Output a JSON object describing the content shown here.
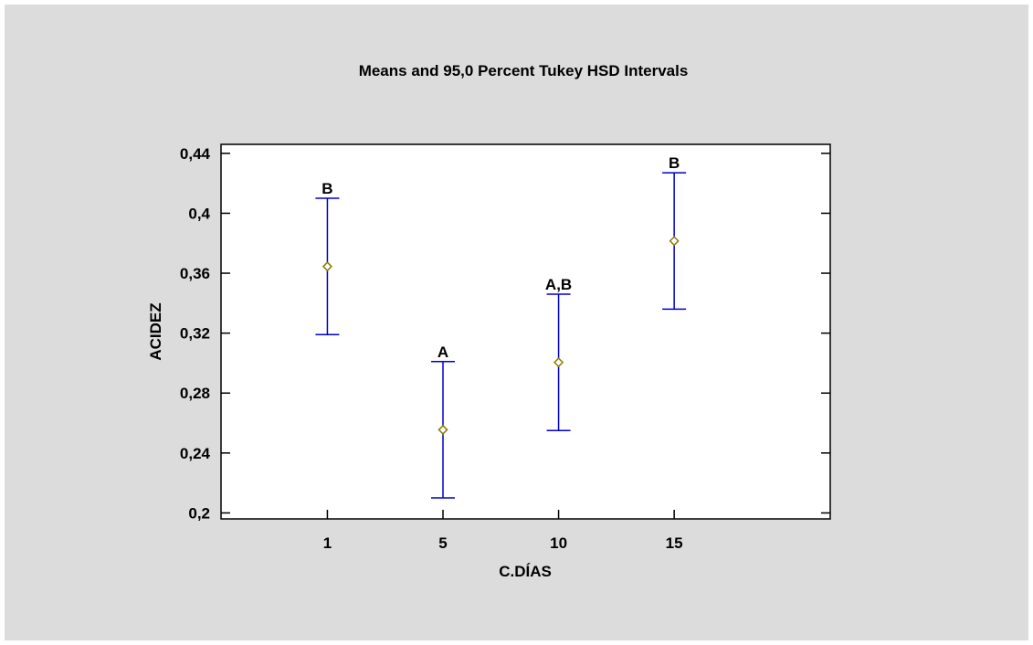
{
  "chart_data": {
    "type": "scatter",
    "title": "Means and 95,0 Percent Tukey HSD Intervals",
    "xlabel": "C.DÍAS",
    "ylabel": "ACIDEZ",
    "categories": [
      "1",
      "5",
      "10",
      "15"
    ],
    "means": [
      0.3645,
      0.2555,
      0.3005,
      0.3815
    ],
    "lower": [
      0.319,
      0.21,
      0.255,
      0.336
    ],
    "upper": [
      0.41,
      0.301,
      0.346,
      0.427
    ],
    "group_labels": [
      "B",
      "A",
      "A,B",
      "B"
    ],
    "ylim": [
      0.196,
      0.446
    ],
    "yticks": [
      0.2,
      0.24,
      0.28,
      0.32,
      0.36,
      0.4,
      0.44
    ],
    "ytick_labels": [
      "0,2",
      "0,24",
      "0,28",
      "0,32",
      "0,36",
      "0,4",
      "0,44"
    ],
    "grid": false,
    "interval_color": "#0000cc",
    "marker_color": "#8a7a00",
    "marker": "diamond"
  }
}
